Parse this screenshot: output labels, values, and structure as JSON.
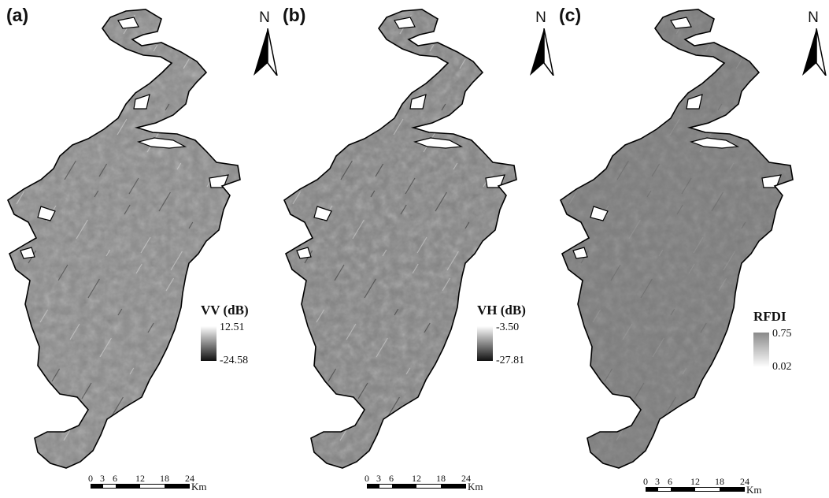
{
  "panels": [
    {
      "label": "(a)",
      "north": "N",
      "legend": {
        "title": "VV (dB)",
        "max": "12.51",
        "min": "-24.58",
        "gradient": [
          "#ffffff",
          "#111111"
        ]
      },
      "texture": {
        "base": "#8c8c8c",
        "dark": "#3a3a3a",
        "light": "#d6d6d6"
      }
    },
    {
      "label": "(b)",
      "north": "N",
      "legend": {
        "title": "VH (dB)",
        "max": "-3.50",
        "min": "-27.81",
        "gradient": [
          "#ffffff",
          "#111111"
        ]
      },
      "texture": {
        "base": "#858585",
        "dark": "#343434",
        "light": "#d0d0d0"
      }
    },
    {
      "label": "(c)",
      "north": "N",
      "legend": {
        "title": "RFDI",
        "max": "0.75",
        "min": "0.02",
        "gradient": [
          "#8a8a8a",
          "#ffffff"
        ]
      },
      "texture": {
        "base": "#7d7d7d",
        "dark": "#555555",
        "light": "#a8a8a8"
      }
    }
  ],
  "scale": {
    "ticks": [
      "0",
      "3",
      "6",
      "12",
      "18",
      "24"
    ],
    "unit": "Km"
  }
}
